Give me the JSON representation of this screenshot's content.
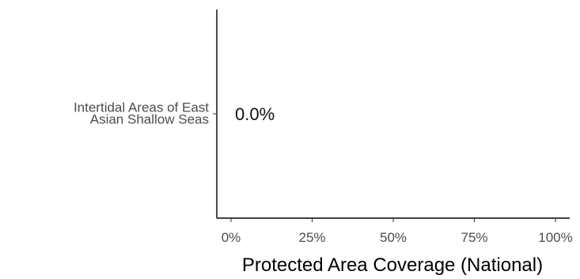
{
  "chart_data": {
    "type": "bar",
    "orientation": "horizontal",
    "categories": [
      [
        "Intertidal Areas of East",
        "Asian Shallow Seas"
      ]
    ],
    "values": [
      0.0
    ],
    "data_labels": [
      "0.0%"
    ],
    "xlabel": "Protected Area Coverage (National)",
    "ylabel": "",
    "title": "",
    "xlim": [
      0,
      100
    ],
    "x_ticks": [
      0,
      25,
      50,
      75,
      100
    ],
    "x_tick_labels": [
      "0%",
      "25%",
      "50%",
      "75%",
      "100%"
    ],
    "grid": false,
    "colors": {
      "axis": "#000000",
      "tick_label": "#4d4d4d",
      "bar": "#4d4d4d",
      "data_label": "#111111"
    }
  }
}
